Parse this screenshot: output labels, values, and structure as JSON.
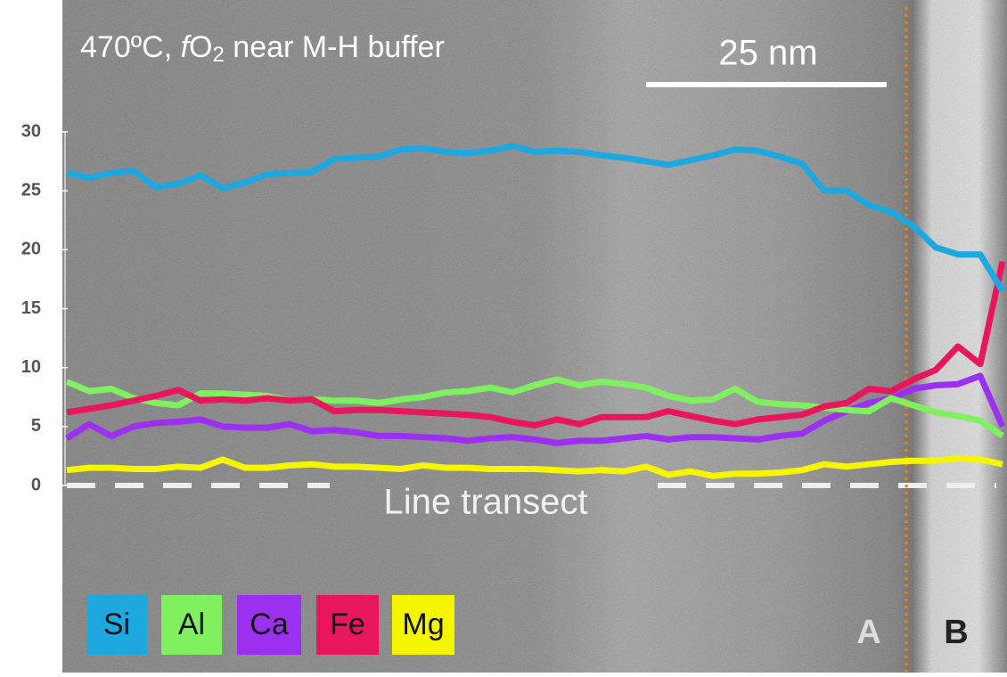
{
  "chart_data": {
    "type": "line",
    "title_parts": [
      "470ºC, ",
      "f",
      "O",
      "2",
      " near M-H buffer"
    ],
    "scale_bar_label": "25 nm",
    "transect_label": "Line transect",
    "zone_labels": [
      "A",
      "B"
    ],
    "ylim": [
      0,
      30
    ],
    "yticks": [
      0,
      5,
      10,
      15,
      20,
      25,
      30
    ],
    "series": [
      {
        "name": "Si",
        "color": "#1fa8e0",
        "values": [
          26.5,
          26.1,
          26.5,
          26.7,
          25.3,
          25.6,
          26.3,
          25.2,
          25.7,
          26.4,
          26.5,
          26.6,
          27.7,
          27.8,
          27.9,
          28.5,
          28.6,
          28.3,
          28.2,
          28.4,
          28.8,
          28.3,
          28.4,
          28.3,
          28.0,
          27.8,
          27.5,
          27.2,
          27.6,
          28.0,
          28.5,
          28.4,
          27.9,
          27.3,
          25.0,
          25.0,
          23.8,
          23.2,
          22.0,
          20.2,
          19.6,
          19.6,
          16.5
        ]
      },
      {
        "name": "Al",
        "color": "#80f060",
        "values": [
          8.8,
          8.0,
          8.2,
          7.4,
          7.0,
          6.8,
          7.8,
          7.8,
          7.7,
          7.6,
          7.2,
          7.3,
          7.2,
          7.2,
          7.0,
          7.3,
          7.5,
          7.9,
          8.0,
          8.3,
          7.9,
          8.5,
          9.0,
          8.5,
          8.8,
          8.6,
          8.3,
          7.6,
          7.2,
          7.3,
          8.2,
          7.1,
          6.9,
          6.8,
          6.6,
          6.4,
          6.3,
          7.4,
          6.8,
          6.2,
          5.9,
          5.5,
          4.2
        ]
      },
      {
        "name": "Ca",
        "color": "#9b30f0",
        "values": [
          4.0,
          5.2,
          4.2,
          5.0,
          5.3,
          5.4,
          5.6,
          5.0,
          4.9,
          4.9,
          5.2,
          4.6,
          4.7,
          4.5,
          4.2,
          4.2,
          4.1,
          4.0,
          3.8,
          4.0,
          4.1,
          3.9,
          3.6,
          3.8,
          3.8,
          4.0,
          4.2,
          3.9,
          4.1,
          4.1,
          4.0,
          3.9,
          4.2,
          4.4,
          5.5,
          6.3,
          7.0,
          7.4,
          8.2,
          8.5,
          8.6,
          9.3,
          5.0
        ]
      },
      {
        "name": "Fe",
        "color": "#e8175d",
        "values": [
          6.2,
          6.5,
          6.8,
          7.2,
          7.6,
          8.1,
          7.2,
          7.3,
          7.2,
          7.4,
          7.2,
          7.3,
          6.3,
          6.4,
          6.4,
          6.3,
          6.2,
          6.1,
          6.0,
          5.8,
          5.4,
          5.1,
          5.6,
          5.2,
          5.8,
          5.8,
          5.8,
          6.3,
          5.9,
          5.5,
          5.2,
          5.6,
          5.8,
          6.0,
          6.7,
          7.0,
          8.2,
          8.0,
          9.0,
          9.8,
          11.8,
          10.3,
          19.0
        ]
      },
      {
        "name": "Mg",
        "color": "#f5f500",
        "values": [
          1.3,
          1.5,
          1.5,
          1.4,
          1.4,
          1.6,
          1.5,
          2.2,
          1.5,
          1.5,
          1.7,
          1.8,
          1.6,
          1.6,
          1.5,
          1.4,
          1.7,
          1.5,
          1.5,
          1.4,
          1.4,
          1.4,
          1.3,
          1.2,
          1.3,
          1.2,
          1.6,
          0.9,
          1.2,
          0.8,
          1.0,
          1.0,
          1.1,
          1.3,
          1.8,
          1.6,
          1.8,
          2.0,
          2.1,
          2.1,
          2.3,
          2.2,
          1.8
        ]
      }
    ]
  }
}
